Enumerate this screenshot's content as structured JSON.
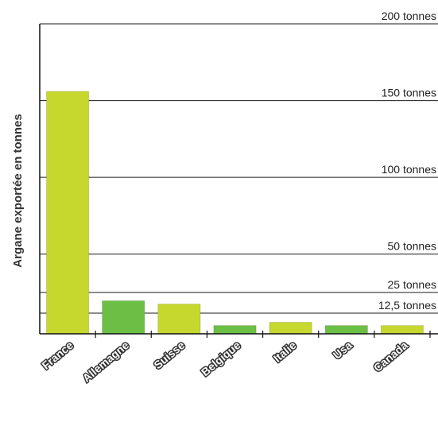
{
  "chart_data": {
    "type": "bar",
    "ylabel": "Argane exportée en tonnes",
    "xlabel": "",
    "title": "",
    "categories": [
      "France",
      "Allemagne",
      "Suisse",
      "Belgique",
      "Italie",
      "Usa",
      "Canada"
    ],
    "values": [
      156,
      20,
      18,
      5,
      7,
      5,
      5
    ],
    "bar_colors": [
      "#c6d72e",
      "#6cbf45",
      "#c6d72e",
      "#6cbf45",
      "#c6d72e",
      "#6cbf45",
      "#c6d72e"
    ],
    "gridlines": [
      {
        "value": 200,
        "label": "200 tonnes"
      },
      {
        "value": 150,
        "label": "150 tonnes"
      },
      {
        "value": 100,
        "label": "100 tonnes"
      },
      {
        "value": 50,
        "label": "50 tonnes"
      },
      {
        "value": 25,
        "label": "25 tonnes"
      },
      {
        "value": 12.5,
        "label": "12,5 tonnes"
      }
    ],
    "ylim": [
      0,
      200
    ],
    "grid": true,
    "legend": "none"
  }
}
